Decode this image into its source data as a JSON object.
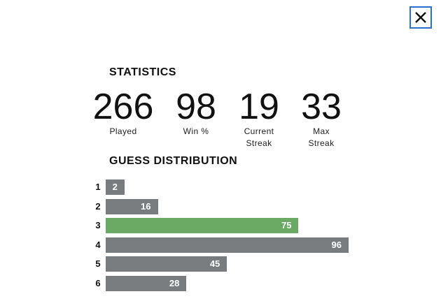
{
  "statistics": {
    "title": "STATISTICS",
    "items": [
      {
        "value": 266,
        "label": "Played"
      },
      {
        "value": 98,
        "label": "Win %"
      },
      {
        "value": 19,
        "label": "Current Streak"
      },
      {
        "value": 33,
        "label": "Max Streak"
      }
    ]
  },
  "distribution": {
    "title": "GUESS DISTRIBUTION",
    "highlight": 3,
    "rows": [
      {
        "guess": 1,
        "count": 2
      },
      {
        "guess": 2,
        "count": 16
      },
      {
        "guess": 3,
        "count": 75
      },
      {
        "guess": 4,
        "count": 96
      },
      {
        "guess": 5,
        "count": 45
      },
      {
        "guess": 6,
        "count": 28
      }
    ]
  }
}
